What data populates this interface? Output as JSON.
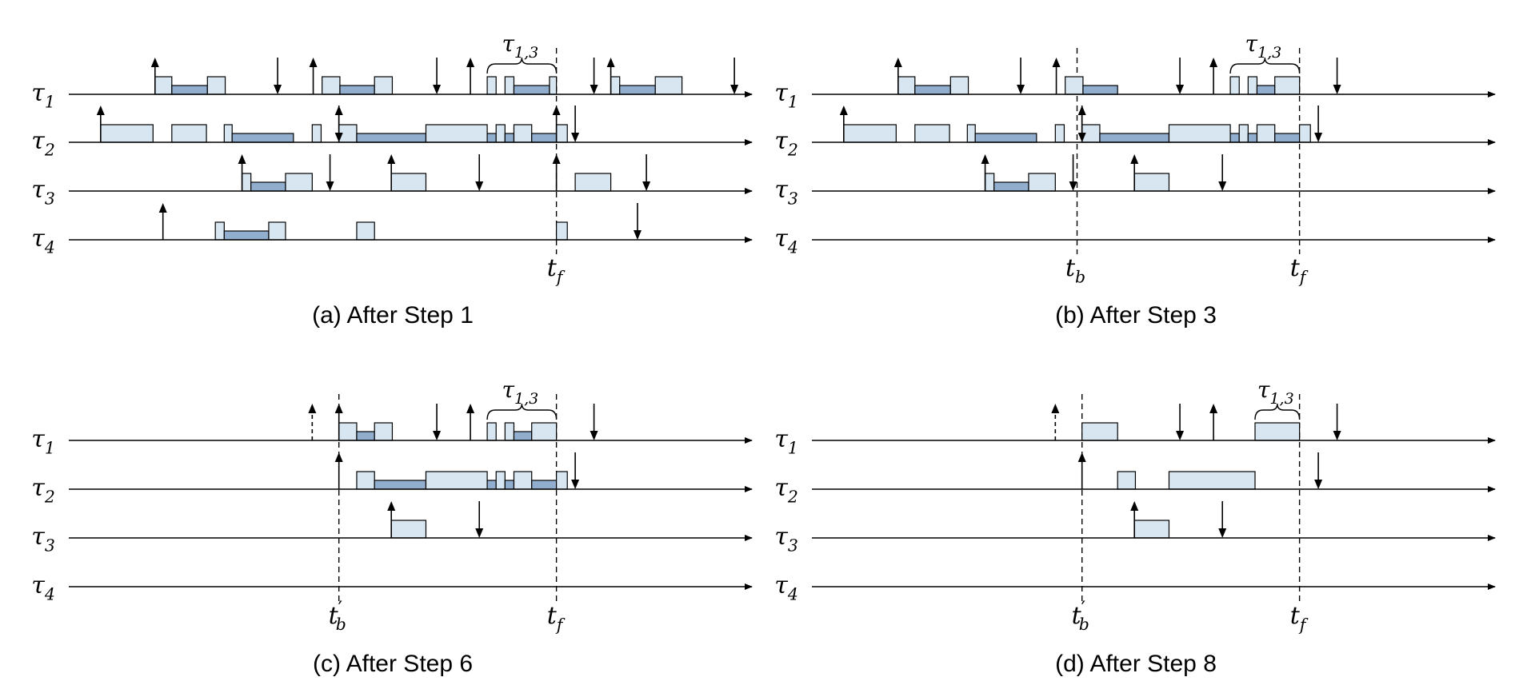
{
  "colors": {
    "light_block": "#d7e6f1",
    "dark_block": "#91aece",
    "line": "#000000"
  },
  "labels": {
    "task_symbol": "τ",
    "tf_main": "t",
    "tf_sub": "f",
    "tb_main": "t",
    "tb_sub": "b",
    "tb_prime": "′",
    "brace_main": "τ",
    "brace_sub": "1,3"
  },
  "panels": [
    {
      "id": "a",
      "caption": "(a) After Step 1",
      "row_labels": [
        "1",
        "2",
        "3",
        "4"
      ],
      "vlines": [
        {
          "t": 545,
          "label": "tf"
        }
      ],
      "brace": {
        "from": 475,
        "to": 545
      },
      "rows": [
        {
          "blocks": [
            [
              139,
              156,
              "l"
            ],
            [
              156,
              192,
              "d"
            ],
            [
              192,
              210,
              "l"
            ],
            [
              308,
              326,
              "l"
            ],
            [
              326,
              361,
              "d"
            ],
            [
              361,
              379,
              "l"
            ],
            [
              475,
              484,
              "l"
            ],
            [
              493,
              502,
              "l"
            ],
            [
              502,
              538,
              "d"
            ],
            [
              538,
              545,
              "l"
            ],
            [
              600,
              609,
              "l"
            ],
            [
              609,
              645,
              "d"
            ],
            [
              645,
              672,
              "l"
            ]
          ],
          "up": [
            139,
            299,
            458,
            600
          ],
          "down": [
            263,
            424,
            583,
            725
          ],
          "dashed_up": []
        },
        {
          "blocks": [
            [
              84,
              137,
              "l"
            ],
            [
              156,
              191,
              "l"
            ],
            [
              209,
              217,
              "l"
            ],
            [
              217,
              279,
              "d"
            ],
            [
              298,
              307,
              "l"
            ],
            [
              325,
              343,
              "l"
            ],
            [
              343,
              413,
              "d"
            ],
            [
              413,
              475,
              "l"
            ],
            [
              475,
              484,
              "d"
            ],
            [
              484,
              493,
              "l"
            ],
            [
              493,
              502,
              "d"
            ],
            [
              502,
              520,
              "l"
            ],
            [
              520,
              545,
              "d"
            ],
            [
              545,
              556,
              "l"
            ]
          ],
          "up": [
            84,
            325,
            545
          ],
          "down": [
            325,
            564
          ],
          "dashed_up": []
        },
        {
          "blocks": [
            [
              227,
              236,
              "l"
            ],
            [
              236,
              271,
              "d"
            ],
            [
              271,
              298,
              "l"
            ],
            [
              378,
              413,
              "l"
            ],
            [
              564,
              600,
              "l"
            ]
          ],
          "up": [
            227,
            378,
            545
          ],
          "down": [
            316,
            467,
            636
          ],
          "dashed_up": []
        },
        {
          "blocks": [
            [
              200,
              209,
              "l"
            ],
            [
              209,
              254,
              "d"
            ],
            [
              254,
              271,
              "l"
            ],
            [
              343,
              361,
              "l"
            ],
            [
              545,
              556,
              "l"
            ]
          ],
          "up": [
            147
          ],
          "down": [
            627
          ],
          "dashed_up": []
        }
      ]
    },
    {
      "id": "b",
      "caption": "(b) After Step 3",
      "row_labels": [
        "1",
        "2",
        "3",
        "4"
      ],
      "vlines": [
        {
          "t": 320,
          "label": "tb"
        },
        {
          "t": 545,
          "label": "tf"
        }
      ],
      "brace": {
        "from": 475,
        "to": 545
      },
      "rows": [
        {
          "blocks": [
            [
              139,
              156,
              "l"
            ],
            [
              156,
              192,
              "d"
            ],
            [
              192,
              210,
              "l"
            ],
            [
              308,
              326,
              "l"
            ],
            [
              326,
              361,
              "d"
            ],
            [
              475,
              484,
              "l"
            ],
            [
              493,
              502,
              "l"
            ],
            [
              502,
              520,
              "d"
            ],
            [
              520,
              545,
              "l"
            ]
          ],
          "up": [
            139,
            299,
            458
          ],
          "down": [
            263,
            424,
            583
          ],
          "dashed_up": []
        },
        {
          "blocks": [
            [
              84,
              137,
              "l"
            ],
            [
              156,
              191,
              "l"
            ],
            [
              209,
              217,
              "l"
            ],
            [
              217,
              279,
              "d"
            ],
            [
              298,
              307,
              "l"
            ],
            [
              325,
              343,
              "l"
            ],
            [
              343,
              413,
              "d"
            ],
            [
              413,
              475,
              "l"
            ],
            [
              475,
              484,
              "d"
            ],
            [
              484,
              493,
              "l"
            ],
            [
              493,
              502,
              "d"
            ],
            [
              502,
              520,
              "l"
            ],
            [
              520,
              545,
              "d"
            ],
            [
              545,
              556,
              "l"
            ]
          ],
          "up": [
            84,
            325
          ],
          "down": [
            325,
            564
          ],
          "dashed_up": []
        },
        {
          "blocks": [
            [
              227,
              236,
              "l"
            ],
            [
              236,
              271,
              "d"
            ],
            [
              271,
              298,
              "l"
            ],
            [
              378,
              413,
              "l"
            ]
          ],
          "up": [
            227,
            378
          ],
          "down": [
            316,
            467
          ],
          "dashed_up": []
        },
        {
          "blocks": [],
          "up": [],
          "down": [],
          "dashed_up": []
        }
      ]
    },
    {
      "id": "c",
      "caption": "(c) After Step 6",
      "row_labels": [
        "1",
        "2",
        "3",
        "4"
      ],
      "vlines": [
        {
          "t": 325,
          "label": "tb'"
        },
        {
          "t": 545,
          "label": "tf"
        }
      ],
      "brace": {
        "from": 475,
        "to": 545
      },
      "rows": [
        {
          "blocks": [
            [
              325,
              343,
              "l"
            ],
            [
              343,
              361,
              "d"
            ],
            [
              361,
              379,
              "l"
            ],
            [
              475,
              484,
              "l"
            ],
            [
              493,
              502,
              "l"
            ],
            [
              502,
              520,
              "d"
            ],
            [
              520,
              545,
              "l"
            ]
          ],
          "up": [
            325,
            458
          ],
          "down": [
            424,
            583
          ],
          "dashed_up": [
            298
          ]
        },
        {
          "blocks": [
            [
              343,
              361,
              "l"
            ],
            [
              361,
              413,
              "d"
            ],
            [
              413,
              475,
              "l"
            ],
            [
              475,
              484,
              "d"
            ],
            [
              484,
              493,
              "l"
            ],
            [
              493,
              502,
              "d"
            ],
            [
              502,
              520,
              "l"
            ],
            [
              520,
              545,
              "d"
            ],
            [
              545,
              556,
              "l"
            ]
          ],
          "up": [
            325
          ],
          "down": [
            564
          ],
          "dashed_up": []
        },
        {
          "blocks": [
            [
              378,
              413,
              "l"
            ]
          ],
          "up": [
            378
          ],
          "down": [
            467
          ],
          "dashed_up": []
        },
        {
          "blocks": [],
          "up": [],
          "down": [],
          "dashed_up": []
        }
      ]
    },
    {
      "id": "d",
      "caption": "(d) After Step 8",
      "row_labels": [
        "1",
        "2",
        "3",
        "4"
      ],
      "vlines": [
        {
          "t": 325,
          "label": "tb'"
        },
        {
          "t": 545,
          "label": "tf"
        }
      ],
      "brace": {
        "from": 500,
        "to": 545
      },
      "rows": [
        {
          "blocks": [
            [
              325,
              361,
              "l"
            ],
            [
              500,
              545,
              "l"
            ]
          ],
          "up": [
            458
          ],
          "down": [
            424,
            583
          ],
          "dashed_up": [
            298
          ]
        },
        {
          "blocks": [
            [
              361,
              379,
              "l"
            ],
            [
              413,
              500,
              "l"
            ]
          ],
          "up": [
            325
          ],
          "down": [
            564
          ],
          "dashed_up": []
        },
        {
          "blocks": [
            [
              378,
              413,
              "l"
            ]
          ],
          "up": [
            378
          ],
          "down": [
            467
          ],
          "dashed_up": []
        },
        {
          "blocks": [],
          "up": [],
          "down": [],
          "dashed_up": []
        }
      ]
    }
  ]
}
